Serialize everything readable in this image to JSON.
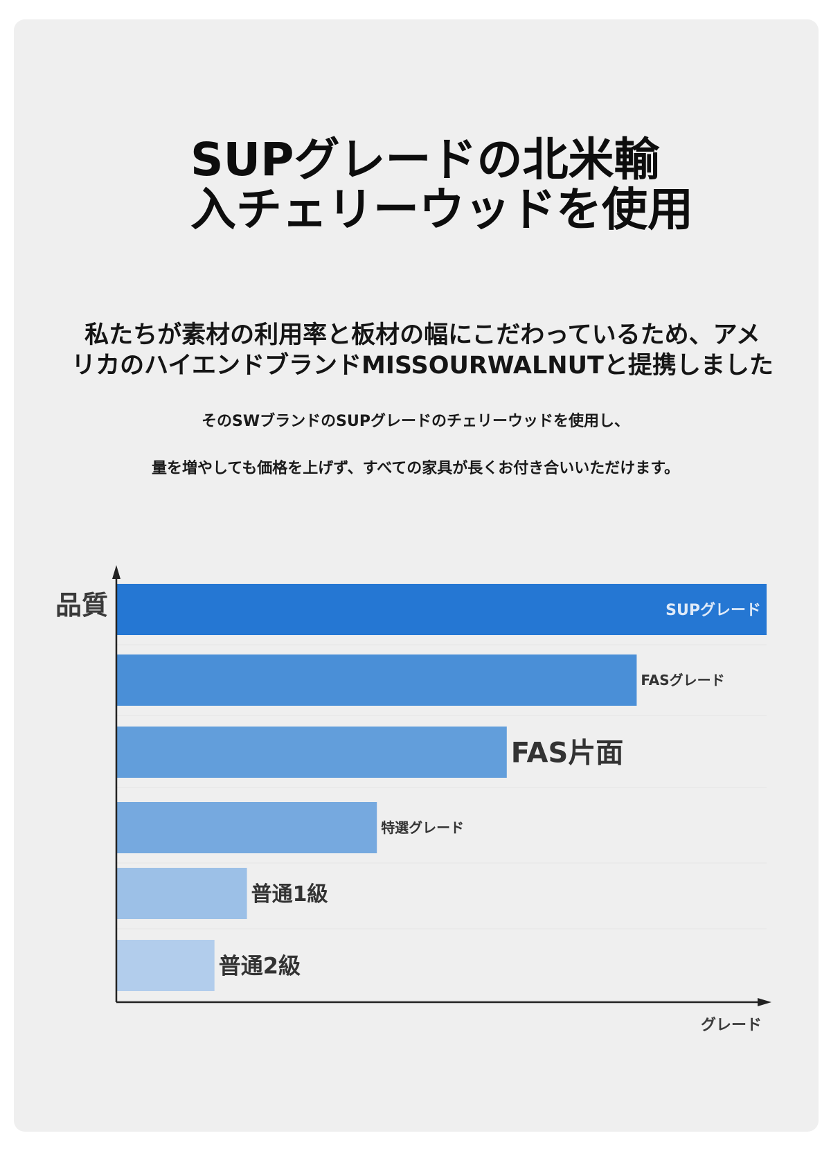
{
  "title": "SUPグレードの北米輸\n入チェリーウッドを使用",
  "lead": "私たちが素材の利用率と板材の幅にこだわっているため、アメ\nリカのハイエンドブランドMISSOURWALNUTと提携しました",
  "sub1": "そのSWブランドのSUPグレードのチェリーウッドを使用し、",
  "sub2": "量を増やしても価格を上げず、すべての家具が長くお付き合いいただけます。",
  "colors": {
    "card_bg": "#efefef",
    "bar_colors": [
      "#2577d3",
      "#4a8fd7",
      "#629edb",
      "#76a9df",
      "#9cc0e7",
      "#b2cdec"
    ],
    "axis": "#222222"
  },
  "chart_data": {
    "type": "bar",
    "orientation": "horizontal",
    "ylabel": "品質",
    "xlabel": "グレード",
    "categories": [
      "SUPグレード",
      "FASグレード",
      "FAS片面",
      "特選グレード",
      "普通1級",
      "普通2級"
    ],
    "values": [
      100,
      80,
      60,
      40,
      20,
      15
    ],
    "xlim": [
      0,
      100
    ],
    "grid": false,
    "legend": "none"
  }
}
